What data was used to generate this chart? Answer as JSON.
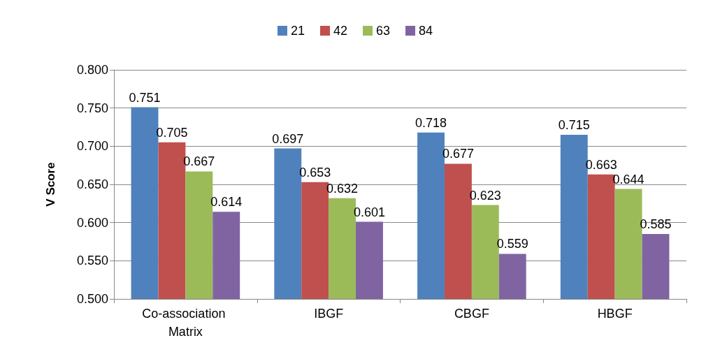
{
  "chart_data": {
    "type": "bar",
    "ylabel": "V Score",
    "categories": [
      "Co-association Matrix",
      "IBGF",
      "CBGF",
      "HBGF"
    ],
    "series": [
      {
        "name": "21",
        "color": "#4f81bd",
        "values": [
          0.751,
          0.697,
          0.718,
          0.715
        ]
      },
      {
        "name": "42",
        "color": "#c0504d",
        "values": [
          0.705,
          0.653,
          0.677,
          0.663
        ]
      },
      {
        "name": "63",
        "color": "#9bbb59",
        "values": [
          0.667,
          0.632,
          0.623,
          0.644
        ]
      },
      {
        "name": "84",
        "color": "#8064a2",
        "values": [
          0.614,
          0.601,
          0.559,
          0.585
        ]
      }
    ],
    "ylim": [
      0.5,
      0.8
    ],
    "yticks": [
      {
        "value": 0.5,
        "label": "0.500"
      },
      {
        "value": 0.55,
        "label": "0.550"
      },
      {
        "value": 0.6,
        "label": "0.600"
      },
      {
        "value": 0.65,
        "label": "0.650"
      },
      {
        "value": 0.7,
        "label": "0.700"
      },
      {
        "value": 0.75,
        "label": "0.750"
      },
      {
        "value": 0.8,
        "label": "0.800"
      }
    ],
    "grid": "y",
    "legend": "top",
    "data_labels": true
  }
}
